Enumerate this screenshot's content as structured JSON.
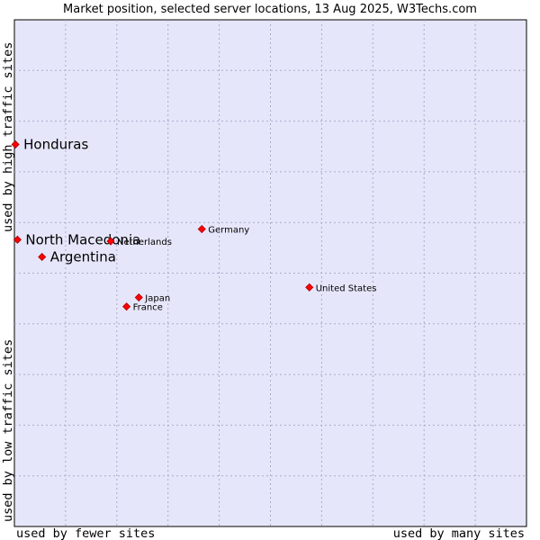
{
  "chart_data": {
    "type": "scatter",
    "title": "Market position, selected server locations, 13 Aug 2025, W3Techs.com",
    "xlabel_left": "used by fewer sites",
    "xlabel_right": "used by many sites",
    "ylabel_top": "used by high traffic sites",
    "ylabel_bottom": "used by low traffic sites",
    "xlim": [
      0,
      100
    ],
    "ylim": [
      0,
      100
    ],
    "grid": true,
    "points": [
      {
        "label": "Honduras",
        "x": 0.2,
        "y": 75.4,
        "highlight": true
      },
      {
        "label": "North Macedonia",
        "x": 0.6,
        "y": 56.6,
        "highlight": true
      },
      {
        "label": "Argentina",
        "x": 5.4,
        "y": 53.2,
        "highlight": true
      },
      {
        "label": "Germany",
        "x": 36.6,
        "y": 58.7,
        "highlight": false
      },
      {
        "label": "Netherlands",
        "x": 18.8,
        "y": 56.3,
        "highlight": false
      },
      {
        "label": "United States",
        "x": 57.6,
        "y": 47.2,
        "highlight": false
      },
      {
        "label": "Japan",
        "x": 24.3,
        "y": 45.2,
        "highlight": false
      },
      {
        "label": "France",
        "x": 21.9,
        "y": 43.4,
        "highlight": false
      }
    ]
  },
  "colors": {
    "plot_bg": "#e6e6fa",
    "grid": "#aaaacc",
    "marker": "#ff0000",
    "marker_edge": "#aa0000",
    "text": "#000000"
  }
}
